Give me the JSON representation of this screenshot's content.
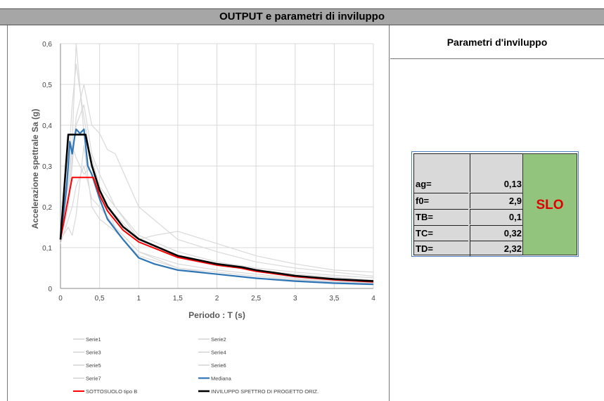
{
  "header": {
    "title": "OUTPUT e parametri di inviluppo"
  },
  "right_panel": {
    "title": "Parametri d'inviluppo",
    "params": [
      {
        "label": "ag=",
        "value": "0,13"
      },
      {
        "label": "f0=",
        "value": "2,9"
      },
      {
        "label": "TB=",
        "value": "0,1"
      },
      {
        "label": "TC=",
        "value": "0,32"
      },
      {
        "label": "TD=",
        "value": "2,32"
      }
    ],
    "state_label": "SLO",
    "state_color": "#e00000",
    "state_bg": "#93c47d"
  },
  "chart_data": {
    "type": "line",
    "xlabel": "Periodo : T (s)",
    "ylabel": "Accelerazione spettrale Sa (g)",
    "xlim": [
      0,
      4
    ],
    "ylim": [
      0,
      0.6
    ],
    "x_ticks": [
      "0",
      "0,5",
      "1",
      "1,5",
      "2",
      "2,5",
      "3",
      "3,5",
      "4"
    ],
    "y_ticks": [
      "0",
      "0,1",
      "0,2",
      "0,3",
      "0,4",
      "0,5",
      "0,6"
    ],
    "grid": true,
    "legend_position": "bottom",
    "series": [
      {
        "name": "Serie1",
        "color": "#d9d9d9",
        "x": [
          0,
          0.1,
          0.15,
          0.2,
          0.3,
          0.4,
          0.5,
          0.7,
          1.0,
          1.5,
          2.0,
          2.5,
          3.0,
          3.5,
          4.0
        ],
        "y": [
          0.12,
          0.3,
          0.45,
          0.55,
          0.42,
          0.3,
          0.24,
          0.15,
          0.09,
          0.06,
          0.045,
          0.035,
          0.025,
          0.02,
          0.015
        ]
      },
      {
        "name": "Serie2",
        "color": "#d9d9d9",
        "x": [
          0,
          0.1,
          0.15,
          0.2,
          0.3,
          0.4,
          0.5,
          0.7,
          1.0,
          1.5,
          2.0,
          2.5,
          3.0,
          3.5,
          4.0
        ],
        "y": [
          0.13,
          0.28,
          0.36,
          0.6,
          0.38,
          0.32,
          0.25,
          0.2,
          0.12,
          0.08,
          0.06,
          0.045,
          0.035,
          0.028,
          0.02
        ]
      },
      {
        "name": "Serie3",
        "color": "#d9d9d9",
        "x": [
          0,
          0.1,
          0.15,
          0.2,
          0.3,
          0.4,
          0.5,
          0.6,
          0.7,
          1.0,
          1.5,
          2.0,
          2.5,
          3.0,
          3.5,
          4.0
        ],
        "y": [
          0.12,
          0.2,
          0.3,
          0.42,
          0.5,
          0.4,
          0.38,
          0.34,
          0.33,
          0.2,
          0.12,
          0.09,
          0.065,
          0.05,
          0.04,
          0.03
        ]
      },
      {
        "name": "Serie4",
        "color": "#d9d9d9",
        "x": [
          0,
          0.1,
          0.15,
          0.2,
          0.3,
          0.4,
          0.5,
          0.7,
          1.0,
          1.2,
          1.5,
          2.0,
          2.5,
          3.0,
          3.5,
          4.0
        ],
        "y": [
          0.12,
          0.25,
          0.35,
          0.32,
          0.28,
          0.3,
          0.22,
          0.18,
          0.12,
          0.13,
          0.14,
          0.11,
          0.08,
          0.06,
          0.045,
          0.04
        ]
      },
      {
        "name": "Serie5",
        "color": "#d9d9d9",
        "x": [
          0,
          0.1,
          0.15,
          0.2,
          0.3,
          0.4,
          0.5,
          0.7,
          1.0,
          1.5,
          2.0,
          2.5,
          3.0,
          3.5,
          4.0
        ],
        "y": [
          0.11,
          0.17,
          0.2,
          0.25,
          0.3,
          0.22,
          0.2,
          0.15,
          0.09,
          0.05,
          0.035,
          0.025,
          0.02,
          0.016,
          0.012
        ]
      },
      {
        "name": "Serie6",
        "color": "#d9d9d9",
        "x": [
          0,
          0.1,
          0.15,
          0.2,
          0.3,
          0.4,
          0.5,
          0.7,
          1.0,
          1.5,
          2.0,
          2.5,
          3.0,
          3.5,
          4.0
        ],
        "y": [
          0.12,
          0.15,
          0.13,
          0.18,
          0.35,
          0.2,
          0.17,
          0.14,
          0.08,
          0.05,
          0.04,
          0.03,
          0.022,
          0.018,
          0.013
        ]
      },
      {
        "name": "Serie7",
        "color": "#d9d9d9",
        "x": [
          0,
          0.1,
          0.15,
          0.2,
          0.3,
          0.4,
          0.5,
          0.7,
          1.0,
          1.5,
          2.0,
          2.5,
          3.0,
          3.5,
          4.0
        ],
        "y": [
          0.13,
          0.22,
          0.32,
          0.4,
          0.45,
          0.33,
          0.28,
          0.2,
          0.13,
          0.09,
          0.065,
          0.05,
          0.04,
          0.032,
          0.026
        ]
      },
      {
        "name": "Mediana",
        "color": "#2e75b6",
        "width": 2.2,
        "x": [
          0,
          0.08,
          0.12,
          0.15,
          0.18,
          0.2,
          0.25,
          0.3,
          0.35,
          0.4,
          0.5,
          0.6,
          0.8,
          1.0,
          1.2,
          1.5,
          2.0,
          2.5,
          3.0,
          3.5,
          4.0
        ],
        "y": [
          0.12,
          0.25,
          0.36,
          0.33,
          0.37,
          0.39,
          0.38,
          0.39,
          0.3,
          0.28,
          0.22,
          0.17,
          0.12,
          0.075,
          0.06,
          0.045,
          0.035,
          0.025,
          0.018,
          0.013,
          0.01
        ]
      },
      {
        "name": "SOTTOSUOLO tipo B",
        "color": "#ff0000",
        "width": 2,
        "x": [
          0,
          0.15,
          0.42,
          0.5,
          0.6,
          0.8,
          1.0,
          1.5,
          2.0,
          2.3,
          2.5,
          3.0,
          3.5,
          4.0
        ],
        "y": [
          0.12,
          0.272,
          0.272,
          0.229,
          0.19,
          0.143,
          0.114,
          0.076,
          0.057,
          0.05,
          0.042,
          0.029,
          0.021,
          0.016
        ]
      },
      {
        "name": "INVILUPPO SPETTRO DI PROGETTO ORIZ.",
        "color": "#000000",
        "width": 2.6,
        "x": [
          0,
          0.1,
          0.32,
          0.4,
          0.5,
          0.6,
          0.8,
          1.0,
          1.5,
          2.0,
          2.32,
          2.5,
          3.0,
          3.5,
          4.0
        ],
        "y": [
          0.12,
          0.377,
          0.377,
          0.302,
          0.241,
          0.201,
          0.151,
          0.121,
          0.08,
          0.06,
          0.052,
          0.045,
          0.031,
          0.023,
          0.018
        ]
      }
    ]
  }
}
